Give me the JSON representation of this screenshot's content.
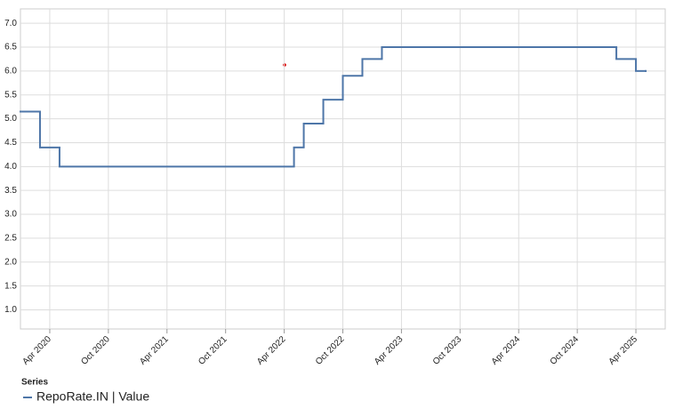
{
  "chart_data": {
    "type": "step-line",
    "x": [
      "2020-01",
      "2020-03",
      "2020-05",
      "2022-05",
      "2022-06",
      "2022-08",
      "2022-10",
      "2022-12",
      "2023-02",
      "2025-02",
      "2025-04",
      "2025-05"
    ],
    "series": [
      {
        "name": "RepoRate.IN | Value",
        "color": "#4e76a8",
        "values": [
          5.15,
          4.4,
          4.0,
          4.4,
          4.9,
          5.4,
          5.9,
          6.25,
          6.5,
          6.25,
          6.0,
          6.0
        ]
      }
    ],
    "legend_title": "Series",
    "xlim": [
      "2020-01",
      "2025-07"
    ],
    "xticks": [
      {
        "value": "2020-04",
        "label": "Apr 2020"
      },
      {
        "value": "2020-10",
        "label": "Oct 2020"
      },
      {
        "value": "2021-04",
        "label": "Apr 2021"
      },
      {
        "value": "2021-10",
        "label": "Oct 2021"
      },
      {
        "value": "2022-04",
        "label": "Apr 2022"
      },
      {
        "value": "2022-10",
        "label": "Oct 2022"
      },
      {
        "value": "2023-04",
        "label": "Apr 2023"
      },
      {
        "value": "2023-10",
        "label": "Oct 2023"
      },
      {
        "value": "2024-04",
        "label": "Apr 2024"
      },
      {
        "value": "2024-10",
        "label": "Oct 2024"
      },
      {
        "value": "2025-04",
        "label": "Apr 2025"
      }
    ],
    "ylim": [
      0.6,
      7.3
    ],
    "yticks": [
      {
        "value": 1,
        "label": "1.0"
      },
      {
        "value": 1.5,
        "label": "1.5"
      },
      {
        "value": 2,
        "label": "2.0"
      },
      {
        "value": 2.5,
        "label": "2.5"
      },
      {
        "value": 3,
        "label": "3.0"
      },
      {
        "value": 3.5,
        "label": "3.5"
      },
      {
        "value": 4,
        "label": "4.0"
      },
      {
        "value": 4.5,
        "label": "4.5"
      },
      {
        "value": 5,
        "label": "5.0"
      },
      {
        "value": 5.5,
        "label": "5.5"
      },
      {
        "value": 6,
        "label": "6.0"
      },
      {
        "value": 6.5,
        "label": "6.5"
      },
      {
        "value": 7,
        "label": "7.0"
      }
    ],
    "grid": true
  }
}
